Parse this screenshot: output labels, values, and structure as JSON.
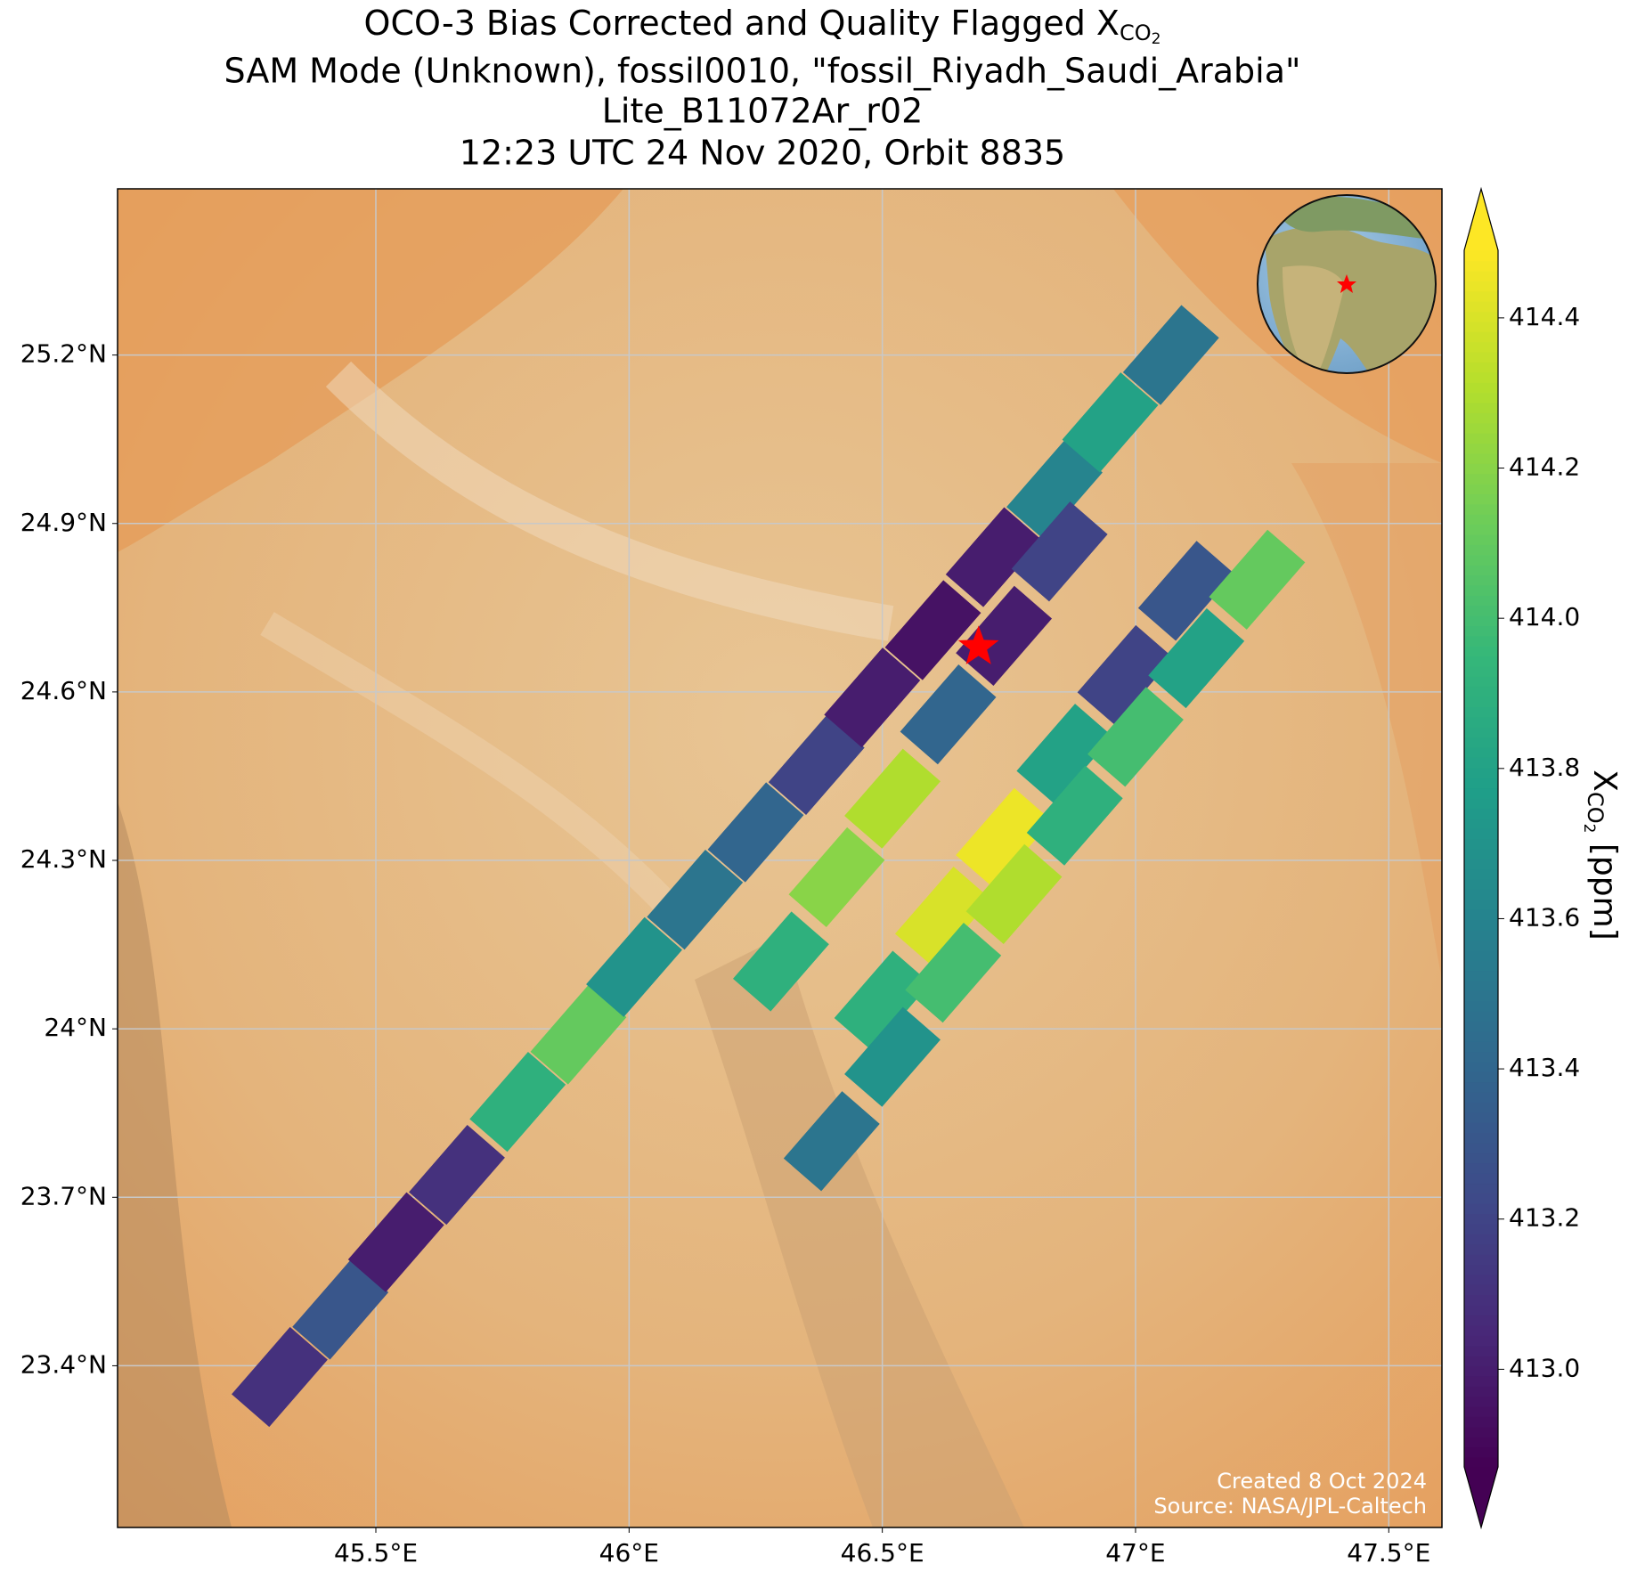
{
  "chart_data": {
    "type": "map",
    "title": {
      "main": "OCO-3 Bias Corrected and Quality Flagged X",
      "sub": "CO",
      "subsub": "2"
    },
    "subtitle_lines": [
      "SAM Mode (Unknown), fossil0010, \"fossil_Riyadh_Saudi_Arabia\"",
      "Lite_B11072Ar_r02",
      "12:23 UTC 24 Nov 2020, Orbit 8835"
    ],
    "xlim": [
      44.99,
      47.605
    ],
    "ylim": [
      23.112,
      25.496
    ],
    "xticks": [
      {
        "value": 45.5,
        "label": "45.5°E"
      },
      {
        "value": 46,
        "label": "46°E"
      },
      {
        "value": 46.5,
        "label": "46.5°E"
      },
      {
        "value": 47,
        "label": "47°E"
      },
      {
        "value": 47.5,
        "label": "47.5°E"
      }
    ],
    "yticks": [
      {
        "value": 23.4,
        "label": "23.4°N"
      },
      {
        "value": 23.7,
        "label": "23.7°N"
      },
      {
        "value": 24,
        "label": "24°N"
      },
      {
        "value": 24.3,
        "label": "24.3°N"
      },
      {
        "value": 24.6,
        "label": "24.6°N"
      },
      {
        "value": 24.9,
        "label": "24.9°N"
      },
      {
        "value": 25.2,
        "label": "25.2°N"
      }
    ],
    "grid": true,
    "colormap": "viridis",
    "clim": [
      412.87,
      414.49
    ],
    "cticks": [
      {
        "value": 413.0,
        "label": "413.0"
      },
      413.2,
      413.4,
      413.6,
      413.8,
      {
        "value": 414.0,
        "label": "414.0"
      },
      414.2,
      414.4
    ],
    "colorbar_label": {
      "main": "X",
      "sub": "CO",
      "subsub": "2",
      "unit": " [ppm]"
    },
    "target": {
      "lon": 46.69,
      "lat": 24.68,
      "color": "#ff0000"
    },
    "soundings": {
      "lon": [
        45.31,
        45.43,
        45.54,
        45.66,
        45.78,
        45.9,
        46.01,
        46.13,
        46.25,
        46.37,
        46.48,
        46.6,
        46.72,
        46.84,
        46.95,
        47.07,
        46.3,
        46.41,
        46.52,
        46.63,
        46.74,
        46.85,
        46.5,
        46.62,
        46.74,
        46.86,
        46.98,
        47.1,
        46.4,
        46.52,
        46.64,
        46.76,
        46.88,
        47.0,
        47.12,
        47.24
      ],
      "lat": [
        23.38,
        23.5,
        23.62,
        23.74,
        23.87,
        23.99,
        24.11,
        24.23,
        24.35,
        24.47,
        24.59,
        24.71,
        24.84,
        24.96,
        25.08,
        25.2,
        24.12,
        24.27,
        24.41,
        24.56,
        24.7,
        24.85,
        24.05,
        24.2,
        24.34,
        24.49,
        24.63,
        24.78,
        23.8,
        23.95,
        24.1,
        24.24,
        24.38,
        24.52,
        24.66,
        24.8
      ],
      "xco2": [
        413.1,
        413.3,
        413.0,
        413.1,
        413.9,
        414.1,
        413.7,
        413.5,
        413.4,
        413.2,
        413.0,
        412.95,
        413.0,
        413.6,
        413.8,
        413.5,
        413.9,
        414.2,
        414.3,
        413.4,
        413.0,
        413.2,
        413.9,
        414.4,
        414.45,
        413.8,
        413.2,
        413.3,
        413.5,
        413.7,
        414.0,
        414.3,
        413.9,
        414.0,
        413.8,
        414.1
      ]
    },
    "credits": [
      "Created 8 Oct 2024",
      "Source: NASA/JPL-Caltech"
    ]
  }
}
